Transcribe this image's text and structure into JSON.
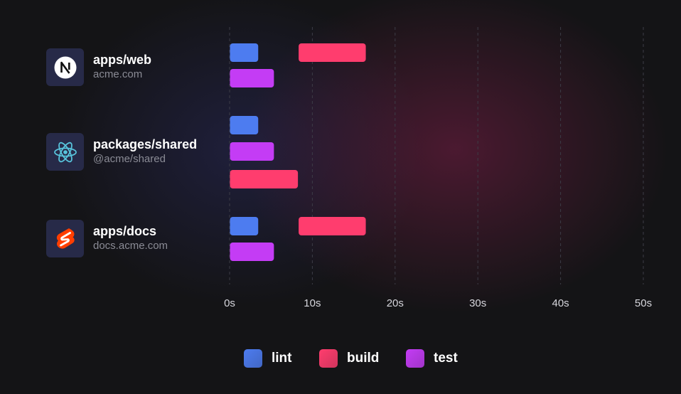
{
  "projects": [
    {
      "name": "apps/web",
      "sub": "acme.com",
      "icon": "nextjs-icon"
    },
    {
      "name": "packages/shared",
      "sub": "@acme/shared",
      "icon": "react-icon"
    },
    {
      "name": "apps/docs",
      "sub": "docs.acme.com",
      "icon": "svelte-icon"
    }
  ],
  "colors": {
    "lint": "#4d7cf0",
    "build": "#ff3d6e",
    "test": "#c43cf5",
    "icon_bg": "#272a48"
  },
  "chart_data": {
    "type": "bar",
    "orientation": "horizontal",
    "variant": "gantt",
    "x_unit": "s",
    "xlim": [
      0,
      50
    ],
    "x_ticks": [
      "0s",
      "10s",
      "20s",
      "30s",
      "40s",
      "50s"
    ],
    "grid": "vertical dashed",
    "legend_position": "bottom",
    "series": [
      {
        "name": "lint",
        "color": "#4d7cf0"
      },
      {
        "name": "build",
        "color": "#ff3d6e"
      },
      {
        "name": "test",
        "color": "#c43cf5"
      }
    ],
    "tasks": [
      {
        "project": "apps/web",
        "series": "lint",
        "start": 0,
        "end": 3.5
      },
      {
        "project": "apps/web",
        "series": "build",
        "start": 8.3,
        "end": 16.5
      },
      {
        "project": "apps/web",
        "series": "test",
        "start": 0,
        "end": 5.4
      },
      {
        "project": "packages/shared",
        "series": "lint",
        "start": 0,
        "end": 3.5
      },
      {
        "project": "packages/shared",
        "series": "test",
        "start": 0,
        "end": 5.4
      },
      {
        "project": "packages/shared",
        "series": "build",
        "start": 0,
        "end": 8.3
      },
      {
        "project": "apps/docs",
        "series": "lint",
        "start": 0,
        "end": 3.5
      },
      {
        "project": "apps/docs",
        "series": "build",
        "start": 8.3,
        "end": 16.5
      },
      {
        "project": "apps/docs",
        "series": "test",
        "start": 0,
        "end": 5.4
      }
    ]
  }
}
